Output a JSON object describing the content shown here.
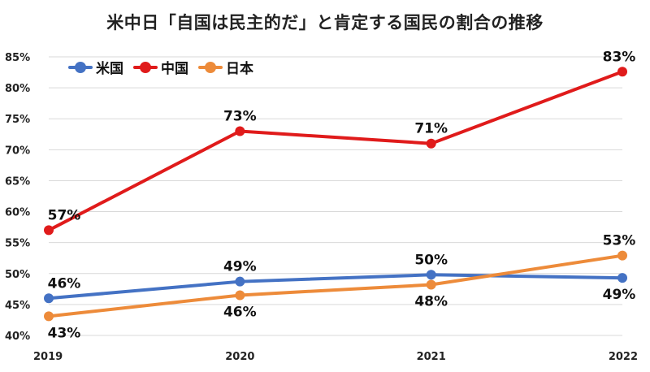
{
  "chart_data": {
    "type": "line",
    "title": "米中日「自国は民主的だ」と肯定する国民の割合の推移",
    "xlabel": "",
    "ylabel": "",
    "categories": [
      "2019",
      "2020",
      "2021",
      "2022"
    ],
    "ylim": [
      40,
      85
    ],
    "yticks": [
      "40%",
      "45%",
      "50%",
      "55%",
      "60%",
      "65%",
      "70%",
      "75%",
      "80%",
      "85%"
    ],
    "grid": true,
    "legend_position": "top-left",
    "series": [
      {
        "name": "米国",
        "color": "#4472C4",
        "values": [
          46,
          48.7,
          49.8,
          49.3
        ],
        "labels": [
          "46%",
          "49%",
          "50%",
          "49%"
        ],
        "label_pos": [
          "above",
          "above",
          "above",
          "below"
        ]
      },
      {
        "name": "中国",
        "color": "#E01B1B",
        "values": [
          57,
          73,
          71,
          82.6
        ],
        "labels": [
          "57%",
          "73%",
          "71%",
          "83%"
        ],
        "label_pos": [
          "above",
          "above",
          "above",
          "above"
        ]
      },
      {
        "name": "日本",
        "color": "#ED8B3A",
        "values": [
          43.1,
          46.5,
          48.2,
          52.9
        ],
        "labels": [
          "43%",
          "46%",
          "48%",
          "53%"
        ],
        "label_pos": [
          "below",
          "below",
          "below",
          "above"
        ]
      }
    ]
  }
}
